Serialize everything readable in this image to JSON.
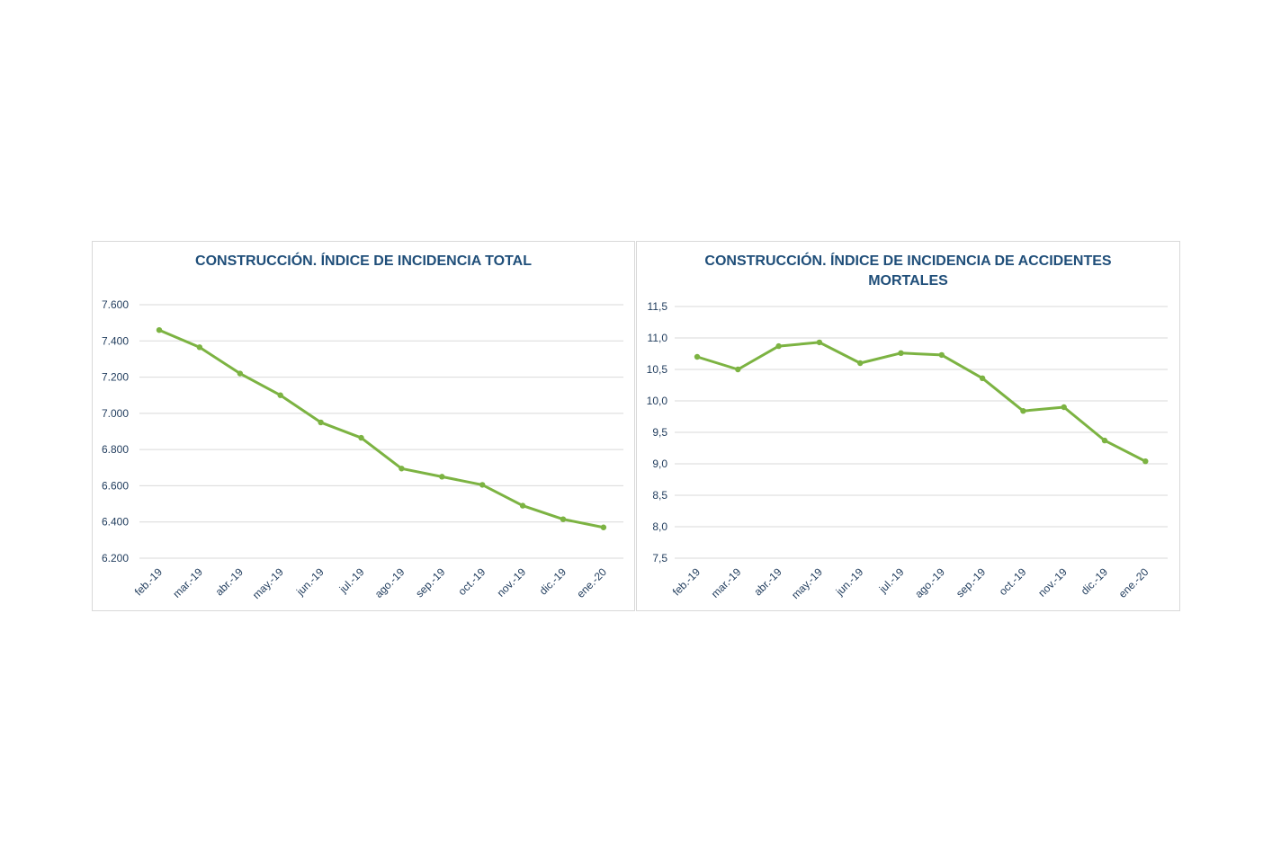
{
  "colors": {
    "line": "#7cb342",
    "grid": "#d9d9d9",
    "title": "#1f4e79",
    "tick": "#1f3b5c"
  },
  "chart_data": [
    {
      "type": "line",
      "title": "CONSTRUCCIÓN. ÍNDICE DE INCIDENCIA TOTAL",
      "categories": [
        "feb.-19",
        "mar.-19",
        "abr.-19",
        "may.-19",
        "jun.-19",
        "jul.-19",
        "ago.-19",
        "sep.-19",
        "oct.-19",
        "nov.-19",
        "dic.-19",
        "ene.-20"
      ],
      "series": [
        {
          "values": [
            7460,
            7365,
            7220,
            7100,
            6950,
            6865,
            6695,
            6650,
            6605,
            6490,
            6415,
            6370
          ]
        }
      ],
      "ylim": [
        6200,
        7600
      ],
      "yticks": [
        "6.200",
        "6.400",
        "6.600",
        "6.800",
        "7.000",
        "7.200",
        "7.400",
        "7.600"
      ],
      "grid": true,
      "legend": "none"
    },
    {
      "type": "line",
      "title": "CONSTRUCCIÓN. ÍNDICE DE INCIDENCIA DE ACCIDENTES MORTALES",
      "categories": [
        "feb.-19",
        "mar.-19",
        "abr.-19",
        "may.-19",
        "jun.-19",
        "jul.-19",
        "ago.-19",
        "sep.-19",
        "oct.-19",
        "nov.-19",
        "dic.-19",
        "ene.-20"
      ],
      "series": [
        {
          "values": [
            10.7,
            10.5,
            10.87,
            10.93,
            10.6,
            10.76,
            10.73,
            10.36,
            9.84,
            9.9,
            9.37,
            9.04
          ]
        }
      ],
      "ylim": [
        7.5,
        11.5
      ],
      "yticks": [
        "7,5",
        "8,0",
        "8,5",
        "9,0",
        "9,5",
        "10,0",
        "10,5",
        "11,0",
        "11,5"
      ],
      "grid": true,
      "legend": "none"
    }
  ]
}
